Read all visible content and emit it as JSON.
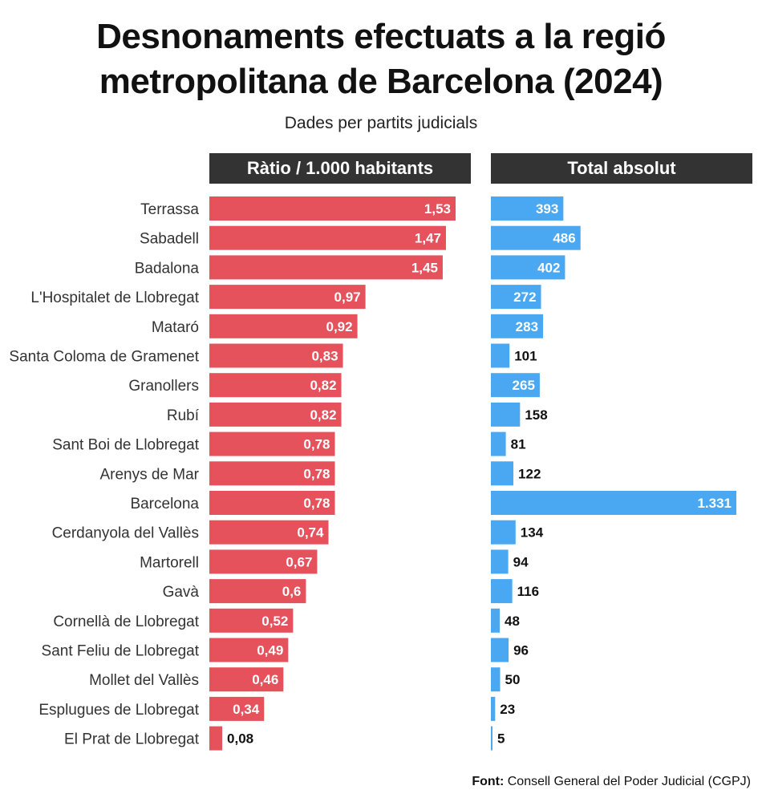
{
  "title_line1": "Desnonaments efectuats a la regió",
  "title_line2": "metropolitana de Barcelona (2024)",
  "subtitle": "Dades per partits judicials",
  "source_label": "Font:",
  "source_text": "Consell General del Poder Judicial (CGPJ)",
  "colors": {
    "ratio": "#e5525c",
    "total": "#4aa8f3",
    "header": "#333333"
  },
  "chart_data": [
    {
      "type": "bar",
      "orientation": "horizontal",
      "title": "Ràtio / 1.000 habitants",
      "categories": [
        "Terrassa",
        "Sabadell",
        "Badalona",
        "L'Hospitalet de Llobregat",
        "Mataró",
        "Santa Coloma de Gramenet",
        "Granollers",
        "Rubí",
        "Sant Boi de Llobregat",
        "Arenys de Mar",
        "Barcelona",
        "Cerdanyola del Vallès",
        "Martorell",
        "Gavà",
        "Cornellà de Llobregat",
        "Sant Feliu de Llobregat",
        "Mollet del Vallès",
        "Esplugues de Llobregat",
        "El Prat de Llobregat"
      ],
      "values": [
        1.53,
        1.47,
        1.45,
        0.97,
        0.92,
        0.83,
        0.82,
        0.82,
        0.78,
        0.78,
        0.78,
        0.74,
        0.67,
        0.6,
        0.52,
        0.49,
        0.46,
        0.34,
        0.08
      ],
      "labels": [
        "1,53",
        "1,47",
        "1,45",
        "0,97",
        "0,92",
        "0,83",
        "0,82",
        "0,82",
        "0,78",
        "0,78",
        "0,78",
        "0,74",
        "0,67",
        "0,6",
        "0,52",
        "0,49",
        "0,46",
        "0,34",
        "0,08"
      ],
      "xlim": [
        0,
        1.53
      ]
    },
    {
      "type": "bar",
      "orientation": "horizontal",
      "title": "Total absolut",
      "categories": [
        "Terrassa",
        "Sabadell",
        "Badalona",
        "L'Hospitalet de Llobregat",
        "Mataró",
        "Santa Coloma de Gramenet",
        "Granollers",
        "Rubí",
        "Sant Boi de Llobregat",
        "Arenys de Mar",
        "Barcelona",
        "Cerdanyola del Vallès",
        "Martorell",
        "Gavà",
        "Cornellà de Llobregat",
        "Sant Feliu de Llobregat",
        "Mollet del Vallès",
        "Esplugues de Llobregat",
        "El Prat de Llobregat"
      ],
      "values": [
        393,
        486,
        402,
        272,
        283,
        101,
        265,
        158,
        81,
        122,
        1331,
        134,
        94,
        116,
        48,
        96,
        50,
        23,
        5
      ],
      "labels": [
        "393",
        "486",
        "402",
        "272",
        "283",
        "101",
        "265",
        "158",
        "81",
        "122",
        "1.331",
        "134",
        "94",
        "116",
        "48",
        "96",
        "50",
        "23",
        "5"
      ],
      "xlim": [
        0,
        1331
      ]
    }
  ]
}
